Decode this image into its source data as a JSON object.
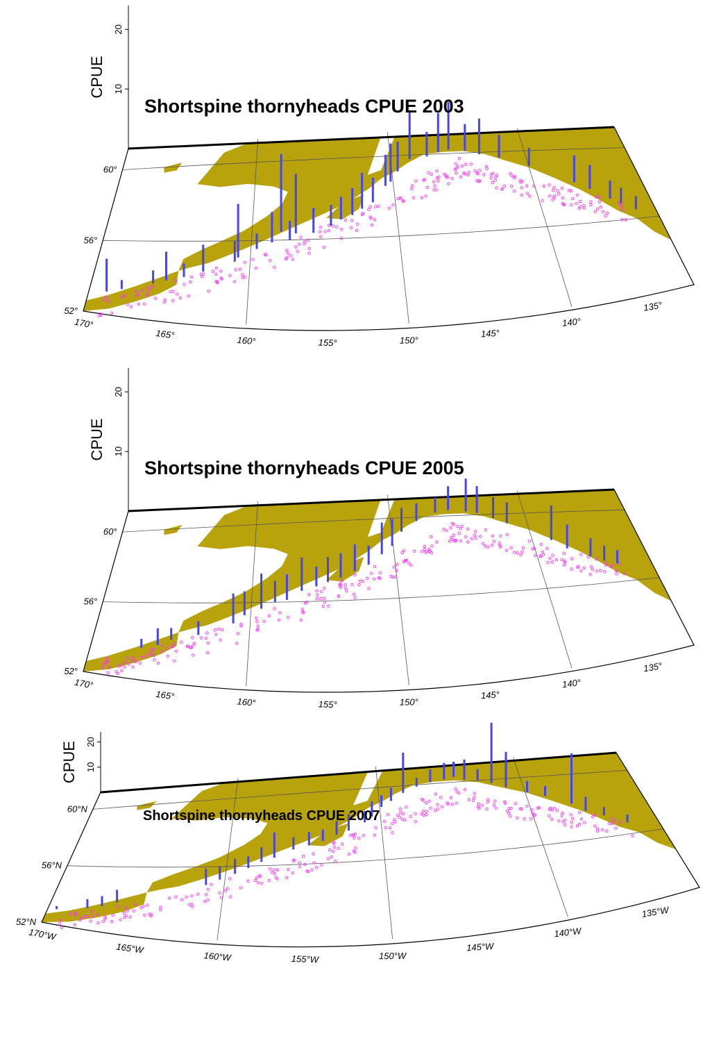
{
  "figure": {
    "panels": [
      {
        "id": "p2003",
        "title": "Shortspine thornyheads  CPUE 2003",
        "ylabel": "CPUE",
        "cpue_ticks": [
          "10",
          "20"
        ],
        "lat_labels": [
          "60°",
          "56°",
          "52°"
        ],
        "lon_labels": [
          "170°",
          "165°",
          "160°",
          "155°",
          "150°",
          "145°",
          "140°",
          "135°"
        ]
      },
      {
        "id": "p2005",
        "title": "Shortspine thornyheads  CPUE 2005",
        "ylabel": "CPUE",
        "cpue_ticks": [
          "10",
          "20"
        ],
        "lat_labels": [
          "60°",
          "56°",
          "52°"
        ],
        "lon_labels": [
          "170°",
          "165°",
          "160°",
          "155°",
          "150°",
          "145°",
          "140°",
          "135°"
        ]
      },
      {
        "id": "p2007",
        "title": "Shortspine thornyheads  CPUE 2007",
        "ylabel": "CPUE",
        "cpue_ticks": [
          "10",
          "20"
        ],
        "lat_labels": [
          "60°N",
          "56°N",
          "52°N"
        ],
        "lon_labels": [
          "170°W",
          "165°W",
          "160°W",
          "155°W",
          "150°W",
          "145°W",
          "140°W",
          "135°W"
        ]
      }
    ],
    "colors": {
      "land": "#b8a30c",
      "bar": "#4646e6",
      "station": "#ff33ff",
      "frame": "#000000",
      "grid": "#555555"
    },
    "cpue_bars": {
      "p2003": [
        [
          168.9,
          53.2,
          5.5
        ],
        [
          168.0,
          53.4,
          1.5
        ],
        [
          166.1,
          53.8,
          2.2
        ],
        [
          165.3,
          54.0,
          4.8
        ],
        [
          164.2,
          54.2,
          2.3
        ],
        [
          163.0,
          54.5,
          4.5
        ],
        [
          161.0,
          55.0,
          3.5
        ],
        [
          160.8,
          55.2,
          9
        ],
        [
          159.6,
          55.6,
          2.6
        ],
        [
          158.6,
          55.9,
          5.1
        ],
        [
          158.0,
          56.4,
          13
        ],
        [
          157.4,
          56.0,
          3.2
        ],
        [
          157.0,
          56.3,
          10
        ],
        [
          155.8,
          56.3,
          4.2
        ],
        [
          154.6,
          56.6,
          3.5
        ],
        [
          153.9,
          56.9,
          3.8
        ],
        [
          153.1,
          57.1,
          4.5
        ],
        [
          152.4,
          57.4,
          6
        ],
        [
          151.6,
          57.7,
          4.1
        ],
        [
          150.6,
          58.5,
          5.2
        ],
        [
          150.2,
          58.7,
          6.4
        ],
        [
          149.6,
          59.2,
          5
        ],
        [
          148.6,
          59.8,
          8
        ],
        [
          147.3,
          59.9,
          4.1
        ],
        [
          146.4,
          60.1,
          6.5
        ],
        [
          145.6,
          60.2,
          8
        ],
        [
          144.4,
          60.1,
          4.5
        ],
        [
          143.4,
          59.9,
          6
        ],
        [
          142.0,
          59.7,
          3.8
        ],
        [
          140.0,
          59.2,
          3
        ],
        [
          137.2,
          58.2,
          4.5
        ],
        [
          136.3,
          57.8,
          4
        ],
        [
          135.2,
          57.2,
          3
        ],
        [
          134.6,
          56.9,
          2.6
        ],
        [
          133.8,
          56.5,
          2.2
        ]
      ],
      "p2005": [
        [
          166.8,
          53.6,
          1.5
        ],
        [
          165.8,
          53.8,
          2.8
        ],
        [
          165.0,
          54.1,
          2
        ],
        [
          163.3,
          54.4,
          2.3
        ],
        [
          161.1,
          55.0,
          5
        ],
        [
          160.4,
          55.4,
          4
        ],
        [
          159.3,
          55.7,
          5.9
        ],
        [
          158.4,
          56.0,
          3.6
        ],
        [
          157.6,
          56.1,
          4.3
        ],
        [
          156.6,
          56.5,
          5.6
        ],
        [
          155.6,
          56.7,
          3.3
        ],
        [
          154.8,
          56.9,
          4.2
        ],
        [
          153.9,
          57.1,
          4.1
        ],
        [
          152.9,
          57.4,
          4.5
        ],
        [
          151.9,
          57.7,
          3.2
        ],
        [
          150.9,
          58.2,
          5.3
        ],
        [
          150.1,
          58.6,
          4.5
        ],
        [
          149.3,
          59.3,
          4
        ],
        [
          148.1,
          59.8,
          3
        ],
        [
          146.6,
          60.2,
          2.5
        ],
        [
          145.6,
          60.3,
          4
        ],
        [
          144.3,
          60.2,
          5.5
        ],
        [
          143.5,
          60.1,
          4.5
        ],
        [
          142.4,
          59.8,
          3.5
        ],
        [
          141.5,
          59.5,
          3.5
        ],
        [
          138.7,
          58.5,
          5.8
        ],
        [
          137.8,
          58.0,
          4
        ],
        [
          136.4,
          57.5,
          3
        ],
        [
          135.6,
          57.2,
          2.5
        ],
        [
          134.8,
          57.0,
          2.2
        ]
      ],
      "p2007": [
        [
          169.5,
          53.0,
          1.2
        ],
        [
          167.8,
          53.3,
          3.5
        ],
        [
          167.0,
          53.5,
          4
        ],
        [
          166.2,
          53.8,
          5
        ],
        [
          161.1,
          55.0,
          6.5
        ],
        [
          160.3,
          55.3,
          5.2
        ],
        [
          159.4,
          55.6,
          6
        ],
        [
          158.6,
          55.9,
          4.6
        ],
        [
          157.8,
          56.2,
          5.8
        ],
        [
          157.0,
          56.4,
          10
        ],
        [
          155.8,
          56.8,
          4.8
        ],
        [
          154.8,
          57.0,
          5.2
        ],
        [
          153.9,
          57.2,
          4.5
        ],
        [
          153.0,
          57.5,
          5.5
        ],
        [
          152.2,
          57.7,
          6.5
        ],
        [
          151.1,
          58.1,
          4.5
        ],
        [
          150.6,
          58.4,
          6
        ],
        [
          149.9,
          58.9,
          4.6
        ],
        [
          149.2,
          59.2,
          5.2
        ],
        [
          148.3,
          59.6,
          16
        ],
        [
          147.3,
          59.9,
          3.5
        ],
        [
          146.3,
          60.1,
          5
        ],
        [
          145.3,
          60.2,
          6.5
        ],
        [
          144.6,
          60.3,
          6
        ],
        [
          143.9,
          60.1,
          8
        ],
        [
          143.0,
          60.0,
          4.5
        ],
        [
          142.1,
          59.8,
          24
        ],
        [
          141.2,
          59.5,
          14
        ],
        [
          139.9,
          59.1,
          4.5
        ],
        [
          138.8,
          58.8,
          4
        ],
        [
          137.3,
          58.2,
          20
        ],
        [
          136.6,
          57.7,
          5.5
        ],
        [
          135.6,
          57.3,
          3.3
        ],
        [
          134.4,
          56.7,
          3.2
        ]
      ]
    }
  }
}
